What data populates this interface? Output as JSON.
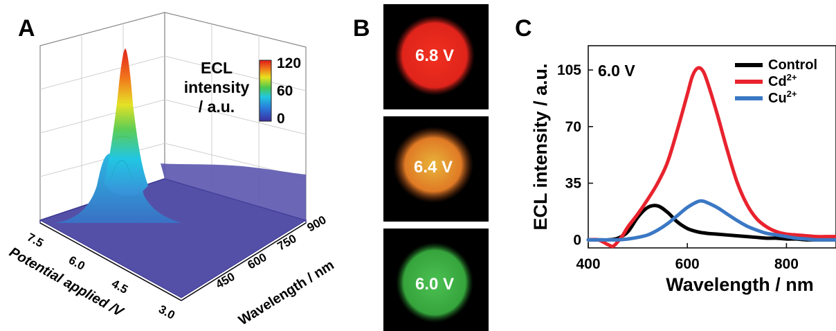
{
  "panels": {
    "a": {
      "letter": "A",
      "colorbar": {
        "label_lines": [
          "ECL",
          "intensity",
          "/ a.u."
        ],
        "ticks": [
          "120",
          "60",
          "0"
        ],
        "min": 0,
        "max": 120
      },
      "x_axis": {
        "label": "Potential applied /V",
        "ticks": [
          "7.5",
          "6.0",
          "4.5",
          "3.0"
        ]
      },
      "y_axis": {
        "label": "Wavelength / nm",
        "ticks": [
          "900",
          "750",
          "600",
          "450"
        ]
      }
    },
    "b": {
      "letter": "B",
      "images": [
        {
          "label": "6.8 V",
          "color": "#e8261e"
        },
        {
          "label": "6.4 V",
          "color": "#e69a2b"
        },
        {
          "label": "6.0 V",
          "color": "#3fae46"
        }
      ]
    },
    "c": {
      "letter": "C",
      "annotation": "6.0 V"
    }
  },
  "chart_data": [
    {
      "type": "surface",
      "panel": "A",
      "xlabel": "Potential applied /V",
      "ylabel": "Wavelength / nm",
      "zlabel": "ECL intensity / a.u.",
      "xlim": [
        3.0,
        7.5
      ],
      "ylim": [
        400,
        900
      ],
      "zlim": [
        0,
        120
      ],
      "x_ticks": [
        7.5,
        6.0,
        4.5,
        3.0
      ],
      "y_ticks": [
        900,
        750,
        600,
        450
      ],
      "colorbar_ticks": [
        0,
        60,
        120
      ],
      "peak": {
        "potential": 6.8,
        "wavelength": 625,
        "intensity": 120
      },
      "baseline": 0,
      "grid": true
    },
    {
      "type": "line",
      "panel": "C",
      "xlabel": "Wavelength / nm",
      "ylabel": "ECL intensity / a.u.",
      "xlim": [
        400,
        900
      ],
      "ylim": [
        -5,
        120
      ],
      "x_ticks": [
        400,
        600,
        800
      ],
      "y_ticks": [
        0,
        35,
        70,
        105
      ],
      "legend": "top-right",
      "series": [
        {
          "name": "Control",
          "color": "#000000",
          "x": [
            400,
            420,
            440,
            460,
            480,
            500,
            520,
            540,
            560,
            580,
            600,
            620,
            640,
            660,
            680,
            700,
            720,
            740,
            760,
            780,
            800,
            820,
            840,
            860,
            880,
            900
          ],
          "values": [
            0,
            0,
            0,
            1,
            5,
            14,
            20,
            21,
            17,
            11,
            7,
            5,
            4,
            3.5,
            3,
            2.5,
            2,
            1.5,
            1,
            1,
            0.5,
            0.5,
            0,
            0,
            0,
            0
          ]
        },
        {
          "name": "Cd2+",
          "label_base": "Cd",
          "label_sup": "2+",
          "color": "#e8232e",
          "x": [
            400,
            420,
            440,
            450,
            460,
            470,
            480,
            500,
            520,
            540,
            560,
            580,
            600,
            610,
            620,
            630,
            640,
            660,
            680,
            700,
            720,
            740,
            760,
            780,
            800,
            820,
            840,
            860,
            880,
            900
          ],
          "values": [
            0,
            0,
            -3,
            -4,
            -1,
            3,
            8,
            16,
            25,
            35,
            48,
            68,
            90,
            101,
            106,
            105,
            98,
            78,
            56,
            36,
            22,
            13,
            8,
            5,
            3.5,
            3,
            2.5,
            2,
            2,
            2
          ]
        },
        {
          "name": "Cu2+",
          "label_base": "Cu",
          "label_sup": "2+",
          "color": "#3b78c4",
          "x": [
            400,
            420,
            440,
            460,
            480,
            500,
            520,
            540,
            560,
            580,
            600,
            620,
            630,
            640,
            660,
            680,
            700,
            720,
            740,
            760,
            780,
            800,
            820,
            840,
            860,
            880,
            900
          ],
          "values": [
            0,
            0,
            0,
            0,
            0.5,
            1.5,
            3,
            6,
            10,
            15,
            20,
            23.5,
            24,
            23,
            20,
            16,
            12,
            8.5,
            6,
            4,
            3,
            2,
            1,
            0.5,
            0,
            0,
            0
          ]
        }
      ]
    }
  ]
}
